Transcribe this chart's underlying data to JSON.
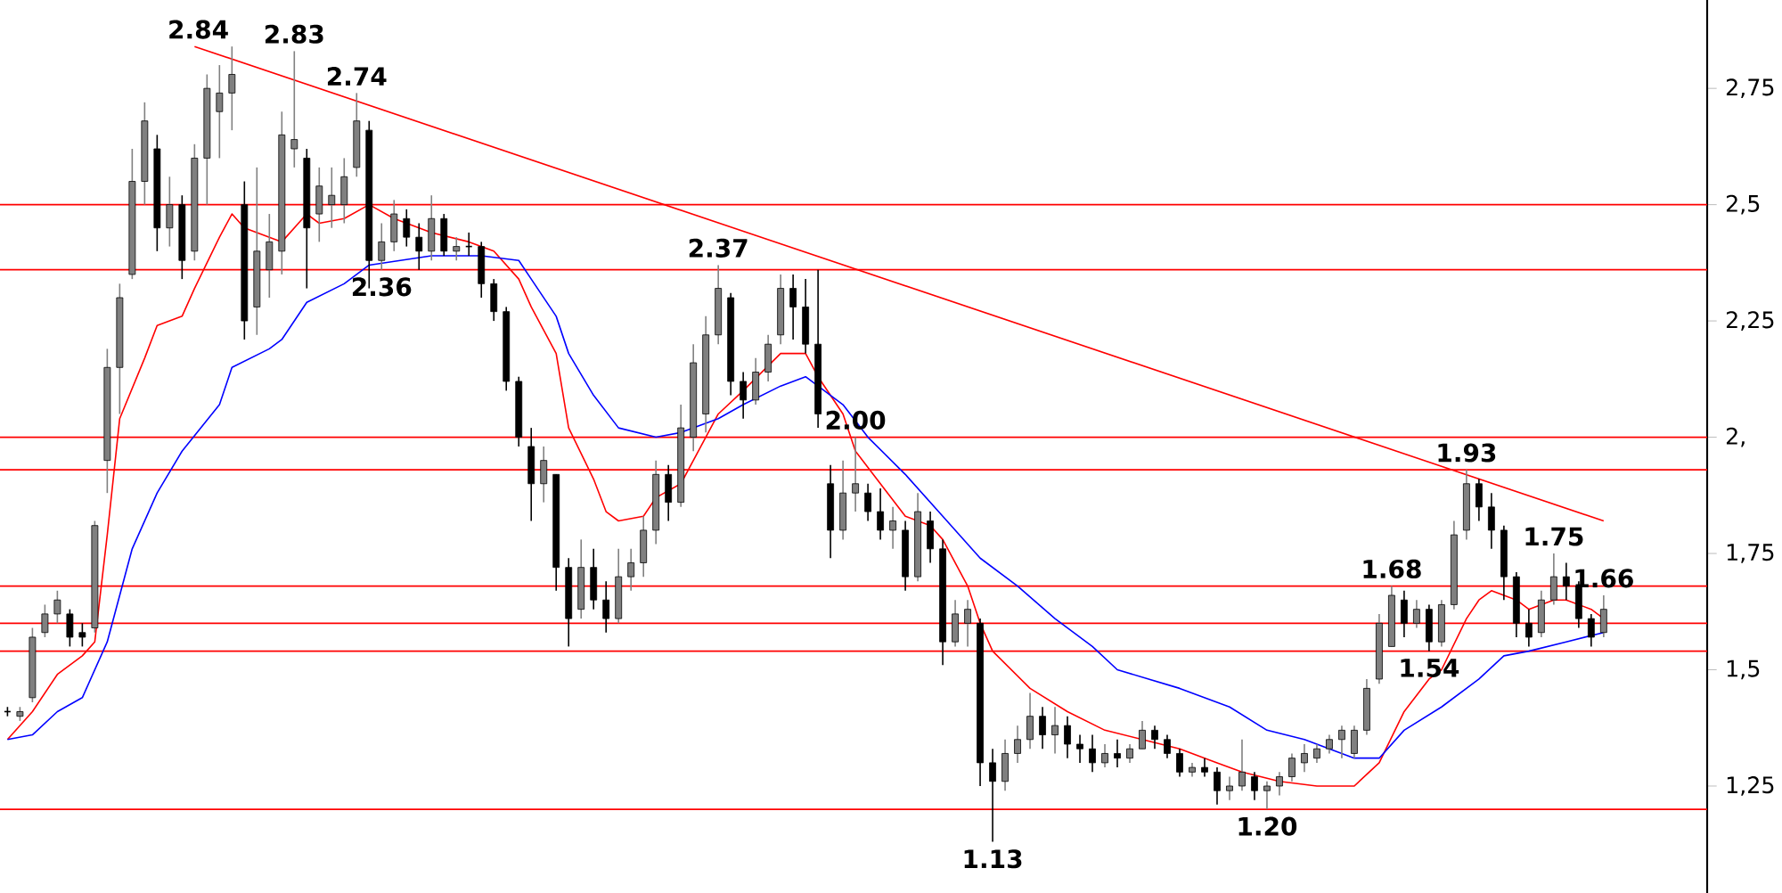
{
  "chart_data": {
    "type": "candlestick",
    "categories": [
      null,
      null,
      null,
      null,
      null,
      null,
      null,
      null,
      null,
      null,
      null,
      null,
      null,
      null,
      null,
      null,
      null,
      null,
      null,
      null,
      null,
      null,
      null,
      null,
      null,
      null,
      null,
      null,
      null,
      null,
      null,
      null,
      null,
      null,
      null,
      null,
      null,
      null,
      null,
      null,
      null,
      null,
      null,
      null,
      null,
      null,
      null,
      null,
      null,
      null,
      null,
      null,
      null,
      null,
      null,
      null,
      null,
      null,
      null,
      null,
      null,
      null,
      null,
      null,
      null,
      null,
      null,
      null,
      null,
      null,
      null,
      null,
      null,
      null,
      null,
      null,
      null,
      null,
      null,
      null,
      null,
      null,
      null,
      null,
      null,
      null,
      null,
      null,
      null,
      null,
      null,
      null,
      null,
      null,
      null,
      null,
      null,
      null,
      null,
      null,
      null,
      null,
      null,
      null,
      null,
      null,
      null,
      null,
      null,
      null,
      null,
      null,
      null,
      null,
      null,
      null,
      null,
      null,
      null,
      null,
      null,
      null,
      null,
      null,
      null,
      null,
      null,
      null,
      null
    ],
    "ohlc": [
      [
        1.41,
        1.42,
        1.4,
        1.41
      ],
      [
        1.4,
        1.42,
        1.39,
        1.41
      ],
      [
        1.44,
        1.59,
        1.43,
        1.57
      ],
      [
        1.58,
        1.64,
        1.57,
        1.62
      ],
      [
        1.62,
        1.67,
        1.6,
        1.65
      ],
      [
        1.62,
        1.63,
        1.55,
        1.57
      ],
      [
        1.58,
        1.6,
        1.55,
        1.57
      ],
      [
        1.59,
        1.82,
        1.58,
        1.81
      ],
      [
        1.95,
        2.19,
        1.88,
        2.15
      ],
      [
        2.15,
        2.33,
        2.05,
        2.3
      ],
      [
        2.35,
        2.62,
        2.34,
        2.55
      ],
      [
        2.55,
        2.72,
        2.5,
        2.68
      ],
      [
        2.62,
        2.65,
        2.4,
        2.45
      ],
      [
        2.45,
        2.56,
        2.41,
        2.5
      ],
      [
        2.5,
        2.52,
        2.34,
        2.38
      ],
      [
        2.4,
        2.63,
        2.38,
        2.6
      ],
      [
        2.6,
        2.78,
        2.5,
        2.75
      ],
      [
        2.7,
        2.8,
        2.6,
        2.74
      ],
      [
        2.74,
        2.84,
        2.66,
        2.78
      ],
      [
        2.5,
        2.55,
        2.21,
        2.25
      ],
      [
        2.28,
        2.58,
        2.22,
        2.4
      ],
      [
        2.36,
        2.48,
        2.3,
        2.42
      ],
      [
        2.4,
        2.7,
        2.35,
        2.65
      ],
      [
        2.62,
        2.83,
        2.58,
        2.64
      ],
      [
        2.6,
        2.62,
        2.32,
        2.45
      ],
      [
        2.48,
        2.58,
        2.42,
        2.54
      ],
      [
        2.5,
        2.58,
        2.45,
        2.52
      ],
      [
        2.5,
        2.6,
        2.46,
        2.56
      ],
      [
        2.58,
        2.74,
        2.56,
        2.68
      ],
      [
        2.66,
        2.68,
        2.32,
        2.38
      ],
      [
        2.38,
        2.46,
        2.36,
        2.42
      ],
      [
        2.42,
        2.51,
        2.4,
        2.48
      ],
      [
        2.47,
        2.49,
        2.41,
        2.43
      ],
      [
        2.43,
        2.46,
        2.36,
        2.4
      ],
      [
        2.4,
        2.52,
        2.38,
        2.47
      ],
      [
        2.47,
        2.48,
        2.39,
        2.4
      ],
      [
        2.4,
        2.43,
        2.38,
        2.41
      ],
      [
        2.41,
        2.44,
        2.39,
        2.41
      ],
      [
        2.41,
        2.42,
        2.3,
        2.33
      ],
      [
        2.33,
        2.34,
        2.25,
        2.27
      ],
      [
        2.27,
        2.28,
        2.1,
        2.12
      ],
      [
        2.12,
        2.13,
        1.98,
        2.0
      ],
      [
        1.98,
        2.02,
        1.82,
        1.9
      ],
      [
        1.9,
        1.98,
        1.86,
        1.95
      ],
      [
        1.92,
        1.92,
        1.67,
        1.72
      ],
      [
        1.72,
        1.74,
        1.55,
        1.61
      ],
      [
        1.63,
        1.78,
        1.61,
        1.72
      ],
      [
        1.72,
        1.76,
        1.63,
        1.65
      ],
      [
        1.65,
        1.69,
        1.58,
        1.61
      ],
      [
        1.61,
        1.76,
        1.6,
        1.7
      ],
      [
        1.7,
        1.76,
        1.67,
        1.73
      ],
      [
        1.73,
        1.83,
        1.7,
        1.8
      ],
      [
        1.8,
        1.95,
        1.77,
        1.92
      ],
      [
        1.92,
        1.94,
        1.82,
        1.86
      ],
      [
        1.86,
        2.07,
        1.85,
        2.02
      ],
      [
        2.0,
        2.2,
        1.97,
        2.16
      ],
      [
        2.05,
        2.26,
        2.01,
        2.22
      ],
      [
        2.22,
        2.37,
        2.2,
        2.32
      ],
      [
        2.3,
        2.31,
        2.09,
        2.12
      ],
      [
        2.12,
        2.14,
        2.04,
        2.08
      ],
      [
        2.08,
        2.17,
        2.07,
        2.14
      ],
      [
        2.14,
        2.22,
        2.12,
        2.2
      ],
      [
        2.22,
        2.35,
        2.2,
        2.32
      ],
      [
        2.32,
        2.35,
        2.21,
        2.28
      ],
      [
        2.28,
        2.34,
        2.18,
        2.2
      ],
      [
        2.2,
        2.36,
        2.02,
        2.05
      ],
      [
        1.9,
        1.94,
        1.74,
        1.8
      ],
      [
        1.8,
        1.95,
        1.78,
        1.88
      ],
      [
        1.88,
        2.0,
        1.84,
        1.9
      ],
      [
        1.88,
        1.9,
        1.82,
        1.84
      ],
      [
        1.84,
        1.89,
        1.78,
        1.8
      ],
      [
        1.8,
        1.85,
        1.76,
        1.82
      ],
      [
        1.8,
        1.82,
        1.67,
        1.7
      ],
      [
        1.7,
        1.88,
        1.69,
        1.84
      ],
      [
        1.82,
        1.84,
        1.73,
        1.76
      ],
      [
        1.76,
        1.78,
        1.51,
        1.56
      ],
      [
        1.56,
        1.65,
        1.55,
        1.62
      ],
      [
        1.6,
        1.65,
        1.55,
        1.63
      ],
      [
        1.6,
        1.61,
        1.25,
        1.3
      ],
      [
        1.3,
        1.33,
        1.13,
        1.26
      ],
      [
        1.26,
        1.35,
        1.24,
        1.32
      ],
      [
        1.32,
        1.38,
        1.3,
        1.35
      ],
      [
        1.35,
        1.45,
        1.33,
        1.4
      ],
      [
        1.4,
        1.42,
        1.33,
        1.36
      ],
      [
        1.36,
        1.42,
        1.32,
        1.38
      ],
      [
        1.38,
        1.4,
        1.31,
        1.34
      ],
      [
        1.34,
        1.36,
        1.3,
        1.33
      ],
      [
        1.33,
        1.36,
        1.28,
        1.3
      ],
      [
        1.3,
        1.34,
        1.29,
        1.32
      ],
      [
        1.32,
        1.35,
        1.29,
        1.31
      ],
      [
        1.31,
        1.34,
        1.3,
        1.33
      ],
      [
        1.33,
        1.39,
        1.33,
        1.37
      ],
      [
        1.37,
        1.38,
        1.33,
        1.35
      ],
      [
        1.35,
        1.36,
        1.31,
        1.32
      ],
      [
        1.32,
        1.33,
        1.27,
        1.28
      ],
      [
        1.28,
        1.3,
        1.27,
        1.29
      ],
      [
        1.29,
        1.31,
        1.27,
        1.28
      ],
      [
        1.28,
        1.29,
        1.21,
        1.24
      ],
      [
        1.24,
        1.27,
        1.22,
        1.25
      ],
      [
        1.25,
        1.35,
        1.24,
        1.28
      ],
      [
        1.27,
        1.28,
        1.22,
        1.24
      ],
      [
        1.24,
        1.26,
        1.2,
        1.25
      ],
      [
        1.25,
        1.28,
        1.23,
        1.27
      ],
      [
        1.27,
        1.32,
        1.26,
        1.31
      ],
      [
        1.3,
        1.34,
        1.28,
        1.32
      ],
      [
        1.31,
        1.34,
        1.3,
        1.33
      ],
      [
        1.33,
        1.36,
        1.32,
        1.35
      ],
      [
        1.35,
        1.38,
        1.31,
        1.37
      ],
      [
        1.32,
        1.38,
        1.31,
        1.37
      ],
      [
        1.37,
        1.48,
        1.36,
        1.46
      ],
      [
        1.48,
        1.62,
        1.47,
        1.6
      ],
      [
        1.55,
        1.68,
        1.55,
        1.66
      ],
      [
        1.65,
        1.67,
        1.57,
        1.6
      ],
      [
        1.6,
        1.65,
        1.59,
        1.63
      ],
      [
        1.63,
        1.64,
        1.54,
        1.56
      ],
      [
        1.56,
        1.65,
        1.55,
        1.64
      ],
      [
        1.64,
        1.82,
        1.63,
        1.79
      ],
      [
        1.8,
        1.93,
        1.78,
        1.9
      ],
      [
        1.9,
        1.91,
        1.82,
        1.85
      ],
      [
        1.85,
        1.88,
        1.76,
        1.8
      ],
      [
        1.8,
        1.81,
        1.65,
        1.7
      ],
      [
        1.7,
        1.71,
        1.57,
        1.6
      ],
      [
        1.6,
        1.63,
        1.55,
        1.57
      ],
      [
        1.58,
        1.67,
        1.57,
        1.65
      ],
      [
        1.65,
        1.75,
        1.64,
        1.7
      ],
      [
        1.7,
        1.73,
        1.65,
        1.68
      ],
      [
        1.68,
        1.69,
        1.59,
        1.61
      ],
      [
        1.61,
        1.62,
        1.55,
        1.57
      ],
      [
        1.58,
        1.66,
        1.57,
        1.63
      ]
    ],
    "series": [
      {
        "type": "line",
        "color": "#ff0000",
        "values": [
          1.35,
          null,
          1.41,
          null,
          1.49,
          null,
          1.53,
          1.56,
          1.79,
          2.04,
          null,
          2.17,
          2.24,
          null,
          2.26,
          2.32,
          null,
          2.43,
          2.48,
          2.45,
          null,
          null,
          2.42,
          null,
          2.48,
          2.46,
          null,
          2.47,
          null,
          2.5,
          null,
          2.47,
          null,
          null,
          2.44,
          null,
          null,
          2.42,
          null,
          2.4,
          null,
          2.34,
          2.28,
          null,
          2.18,
          2.02,
          null,
          1.91,
          1.84,
          1.82,
          null,
          1.83,
          1.87,
          null,
          1.9,
          null,
          null,
          2.05,
          null,
          2.1,
          null,
          null,
          2.18,
          null,
          2.18,
          2.13,
          null,
          2.05,
          1.97,
          null,
          1.9,
          null,
          1.83,
          null,
          1.81,
          1.78,
          null,
          1.68,
          1.6,
          1.54,
          null,
          null,
          1.46,
          null,
          null,
          1.41,
          null,
          null,
          1.37,
          null,
          null,
          1.35,
          null,
          null,
          1.33,
          null,
          null,
          1.3,
          null,
          1.28,
          null,
          null,
          1.26,
          null,
          null,
          1.25,
          null,
          null,
          1.25,
          null,
          1.3,
          null,
          1.41,
          null,
          1.48,
          1.5,
          null,
          1.61,
          1.65,
          1.67,
          null,
          1.65,
          1.63,
          null,
          1.65,
          1.65,
          null,
          1.63,
          1.61
        ]
      },
      {
        "type": "line",
        "color": "#0000ff",
        "values": [
          1.35,
          null,
          1.36,
          null,
          1.41,
          null,
          1.44,
          null,
          1.56,
          null,
          1.76,
          null,
          1.88,
          null,
          1.97,
          null,
          null,
          2.07,
          2.15,
          null,
          null,
          2.19,
          2.21,
          null,
          2.29,
          null,
          null,
          2.33,
          null,
          2.37,
          null,
          null,
          null,
          null,
          2.39,
          null,
          null,
          null,
          2.39,
          null,
          null,
          2.38,
          2.34,
          null,
          2.26,
          2.18,
          null,
          2.09,
          null,
          2.02,
          null,
          null,
          2.0,
          null,
          2.01,
          null,
          null,
          2.04,
          null,
          2.07,
          null,
          null,
          2.11,
          null,
          2.13,
          null,
          null,
          2.07,
          null,
          2.0,
          null,
          null,
          1.92,
          null,
          null,
          1.83,
          null,
          null,
          1.74,
          null,
          null,
          1.68,
          null,
          null,
          1.61,
          null,
          null,
          1.55,
          null,
          1.5,
          null,
          null,
          null,
          null,
          1.46,
          null,
          null,
          null,
          1.42,
          null,
          null,
          1.37,
          null,
          null,
          1.35,
          null,
          null,
          null,
          1.31,
          null,
          1.31,
          null,
          1.37,
          null,
          null,
          1.42,
          null,
          null,
          1.48,
          null,
          1.53,
          null,
          1.54,
          null,
          null,
          1.56,
          null,
          null,
          1.58
        ]
      },
      {
        "type": "line",
        "color": "#ff0000",
        "values": [
          null,
          null,
          null,
          null,
          null,
          null,
          null,
          null,
          null,
          null,
          null,
          null,
          null,
          null,
          null,
          2.84,
          null,
          null,
          null,
          null,
          null,
          null,
          null,
          null,
          null,
          null,
          null,
          null,
          null,
          null,
          null,
          null,
          null,
          null,
          null,
          null,
          null,
          null,
          null,
          null,
          null,
          null,
          null,
          null,
          null,
          null,
          null,
          null,
          null,
          null,
          null,
          null,
          null,
          null,
          null,
          null,
          null,
          null,
          null,
          null,
          null,
          null,
          null,
          null,
          null,
          null,
          null,
          null,
          null,
          null,
          null,
          null,
          null,
          null,
          null,
          null,
          null,
          null,
          null,
          null,
          null,
          null,
          null,
          null,
          null,
          null,
          null,
          null,
          null,
          null,
          null,
          null,
          null,
          null,
          null,
          null,
          null,
          null,
          null,
          null,
          null,
          null,
          null,
          null,
          null,
          null,
          null,
          null,
          null,
          null,
          null,
          null,
          null,
          null,
          null,
          null,
          null,
          null,
          null,
          null,
          null,
          null,
          null,
          null,
          null,
          null,
          null,
          null,
          1.82
        ]
      }
    ],
    "ref_lines": [
      {
        "axis": "y",
        "value": 2.5,
        "color": "#ff0000"
      },
      {
        "axis": "y",
        "value": 2.36,
        "color": "#ff0000"
      },
      {
        "axis": "y",
        "value": 2.0,
        "color": "#ff0000"
      },
      {
        "axis": "y",
        "value": 1.93,
        "color": "#ff0000"
      },
      {
        "axis": "y",
        "value": 1.68,
        "color": "#ff0000"
      },
      {
        "axis": "y",
        "value": 1.6,
        "color": "#ff0000"
      },
      {
        "axis": "y",
        "value": 1.54,
        "color": "#ff0000"
      },
      {
        "axis": "y",
        "value": 1.2,
        "color": "#ff0000"
      }
    ],
    "annotations": [
      {
        "text": "2.84",
        "y": 2.84
      },
      {
        "text": "2.83",
        "y": 2.83
      },
      {
        "text": "2.74",
        "y": 2.74
      },
      {
        "text": "2.37",
        "y": 2.37
      },
      {
        "text": "2.36",
        "y": 2.36
      },
      {
        "text": "2.00",
        "y": 2.0
      },
      {
        "text": "1.13",
        "y": 1.13
      },
      {
        "text": "1.20",
        "y": 1.2
      },
      {
        "text": "1.54",
        "y": 1.54
      },
      {
        "text": "1.68",
        "y": 1.68
      },
      {
        "text": "1.93",
        "y": 1.93
      },
      {
        "text": "1.75",
        "y": 1.75
      },
      {
        "text": "1.66",
        "y": 1.66
      }
    ],
    "ylim": [
      1.02,
      2.94
    ],
    "yticks": [
      {
        "value": 1.25,
        "label": "1,25"
      },
      {
        "value": 1.5,
        "label": "1,5"
      },
      {
        "value": 1.75,
        "label": "1,75"
      },
      {
        "value": 2.0,
        "label": "2,"
      },
      {
        "value": 2.25,
        "label": "2,25"
      },
      {
        "value": 2.5,
        "label": "2,5"
      },
      {
        "value": 2.75,
        "label": "2,75"
      }
    ],
    "tick_labels": "y"
  }
}
